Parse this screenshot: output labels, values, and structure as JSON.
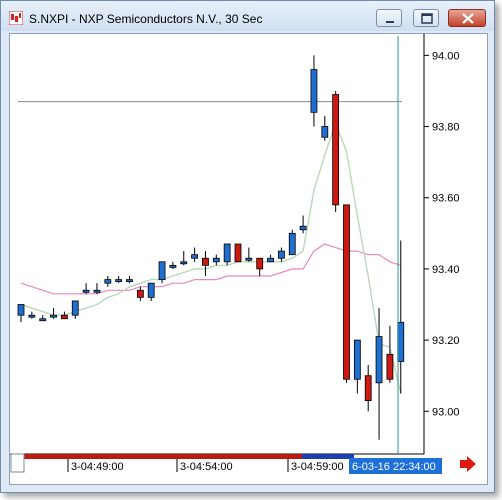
{
  "window": {
    "title": "S.NXPI - NXP Semiconductors N.V., 30 Sec",
    "minimize_icon": "minimize-icon",
    "maximize_icon": "maximize-icon",
    "close_icon": "close-icon"
  },
  "colors": {
    "up_candle": "#1f6fd1",
    "down_candle": "#cc1a12",
    "ma_fast": "#b9d8b7",
    "ma_slow": "#e58ab8",
    "cursor_line": "#2a9a9a",
    "reference_line": "#8a8a8a",
    "time_cursor_bg": "#1e6fd9",
    "scroll_arrow": "#e21b10"
  },
  "price_axis": {
    "labels": [
      "94.00",
      "93.80",
      "93.60",
      "93.40",
      "93.20",
      "93.00"
    ]
  },
  "time_axis": {
    "labels": [
      "3-04:49:00",
      "3-04:54:00",
      "3-04:59:00"
    ],
    "cursor_label": "6-03-16 22:34:00"
  },
  "chart_data": {
    "type": "candlestick",
    "symbol": "S.NXPI",
    "interval": "30 Sec",
    "ylim": [
      92.88,
      94.06
    ],
    "reference_line": 93.87,
    "candles": [
      {
        "o": 93.27,
        "h": 93.3,
        "l": 93.25,
        "c": 93.3
      },
      {
        "o": 93.27,
        "h": 93.28,
        "l": 93.26,
        "c": 93.27
      },
      {
        "o": 93.26,
        "h": 93.27,
        "l": 93.26,
        "c": 93.26
      },
      {
        "o": 93.27,
        "h": 93.29,
        "l": 93.26,
        "c": 93.27
      },
      {
        "o": 93.27,
        "h": 93.28,
        "l": 93.26,
        "c": 93.26
      },
      {
        "o": 93.27,
        "h": 93.31,
        "l": 93.26,
        "c": 93.31
      },
      {
        "o": 93.34,
        "h": 93.36,
        "l": 93.33,
        "c": 93.34
      },
      {
        "o": 93.34,
        "h": 93.36,
        "l": 93.33,
        "c": 93.34
      },
      {
        "o": 93.36,
        "h": 93.38,
        "l": 93.35,
        "c": 93.37
      },
      {
        "o": 93.37,
        "h": 93.38,
        "l": 93.36,
        "c": 93.37
      },
      {
        "o": 93.37,
        "h": 93.38,
        "l": 93.36,
        "c": 93.37
      },
      {
        "o": 93.34,
        "h": 93.35,
        "l": 93.31,
        "c": 93.32
      },
      {
        "o": 93.32,
        "h": 93.36,
        "l": 93.31,
        "c": 93.36
      },
      {
        "o": 93.37,
        "h": 93.42,
        "l": 93.36,
        "c": 93.42
      },
      {
        "o": 93.41,
        "h": 93.42,
        "l": 93.4,
        "c": 93.41
      },
      {
        "o": 93.42,
        "h": 93.45,
        "l": 93.41,
        "c": 93.42
      },
      {
        "o": 93.43,
        "h": 93.46,
        "l": 93.42,
        "c": 93.44
      },
      {
        "o": 93.43,
        "h": 93.45,
        "l": 93.38,
        "c": 93.41
      },
      {
        "o": 93.42,
        "h": 93.44,
        "l": 93.41,
        "c": 93.43
      },
      {
        "o": 93.42,
        "h": 93.47,
        "l": 93.41,
        "c": 93.47
      },
      {
        "o": 93.47,
        "h": 93.47,
        "l": 93.42,
        "c": 93.42
      },
      {
        "o": 93.43,
        "h": 93.46,
        "l": 93.42,
        "c": 93.43
      },
      {
        "o": 93.43,
        "h": 93.42,
        "l": 93.38,
        "c": 93.4
      },
      {
        "o": 93.42,
        "h": 93.44,
        "l": 93.42,
        "c": 93.43
      },
      {
        "o": 93.43,
        "h": 93.46,
        "l": 93.42,
        "c": 93.45
      },
      {
        "o": 93.44,
        "h": 93.51,
        "l": 93.44,
        "c": 93.5
      },
      {
        "o": 93.51,
        "h": 93.55,
        "l": 93.5,
        "c": 93.52
      },
      {
        "o": 93.84,
        "h": 94.0,
        "l": 93.8,
        "c": 93.96
      },
      {
        "o": 93.77,
        "h": 93.83,
        "l": 93.76,
        "c": 93.8
      },
      {
        "o": 93.89,
        "h": 93.9,
        "l": 93.56,
        "c": 93.58
      },
      {
        "o": 93.58,
        "h": 93.58,
        "l": 93.08,
        "c": 93.09
      },
      {
        "o": 93.09,
        "h": 93.2,
        "l": 93.05,
        "c": 93.2
      },
      {
        "o": 93.1,
        "h": 93.13,
        "l": 93.0,
        "c": 93.03
      },
      {
        "o": 93.08,
        "h": 93.29,
        "l": 92.92,
        "c": 93.21
      },
      {
        "o": 93.16,
        "h": 93.24,
        "l": 93.08,
        "c": 93.09
      },
      {
        "o": 93.14,
        "h": 93.48,
        "l": 93.05,
        "c": 93.25
      }
    ],
    "ma_fast": [
      93.3,
      93.29,
      93.28,
      93.27,
      93.27,
      93.28,
      93.29,
      93.3,
      93.32,
      93.33,
      93.35,
      93.36,
      93.37,
      93.37,
      93.38,
      93.39,
      93.4,
      93.4,
      93.41,
      93.41,
      93.42,
      93.42,
      93.42,
      93.42,
      93.42,
      93.43,
      93.45,
      93.62,
      93.72,
      93.81,
      93.73,
      93.55,
      93.38,
      93.19,
      93.18,
      93.05
    ],
    "ma_slow": [
      93.36,
      93.35,
      93.34,
      93.33,
      93.33,
      93.33,
      93.33,
      93.33,
      93.34,
      93.34,
      93.34,
      93.35,
      93.35,
      93.35,
      93.36,
      93.36,
      93.37,
      93.37,
      93.37,
      93.38,
      93.38,
      93.38,
      93.38,
      93.38,
      93.39,
      93.4,
      93.4,
      93.45,
      93.47,
      93.46,
      93.45,
      93.45,
      93.44,
      93.44,
      93.42,
      93.41
    ]
  }
}
